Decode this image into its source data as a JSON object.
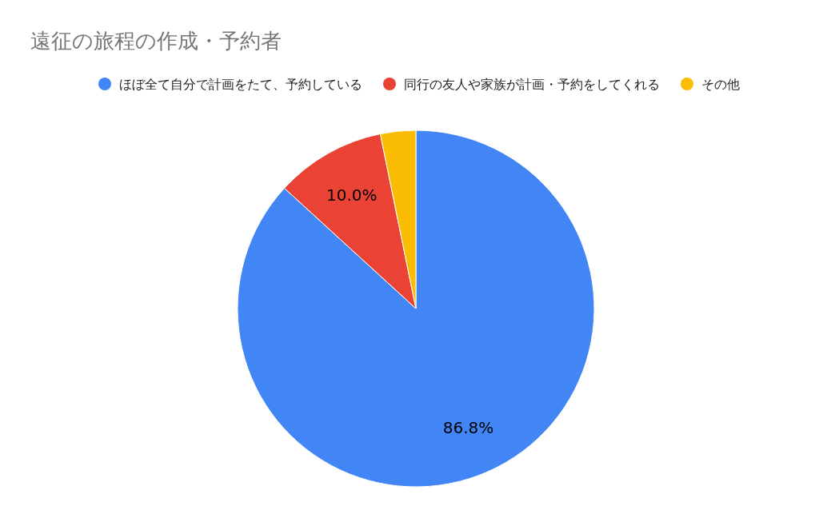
{
  "chart_data": {
    "type": "pie",
    "title": "遠征の旅程の作成・予約者",
    "categories": [
      "ほぼ全て自分で計画をたて、予約している",
      "同行の友人や家族が計画・予約をしてくれる",
      "その他"
    ],
    "values": [
      86.8,
      10.0,
      3.2
    ],
    "colors": [
      "#4285f4",
      "#ea4335",
      "#fbbc04"
    ],
    "value_labels": [
      "86.8%",
      "10.0%",
      null
    ],
    "legend": "top"
  }
}
